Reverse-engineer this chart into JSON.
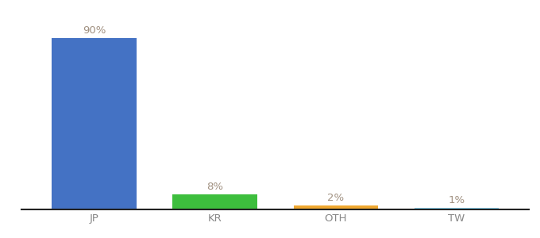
{
  "categories": [
    "JP",
    "KR",
    "OTH",
    "TW"
  ],
  "values": [
    90,
    8,
    2,
    1
  ],
  "bar_colors": [
    "#4472c4",
    "#3dbe3d",
    "#f0a830",
    "#87ceeb"
  ],
  "ylim": [
    0,
    100
  ],
  "bar_width": 0.7,
  "background_color": "#ffffff",
  "label_fontsize": 9.5,
  "tick_fontsize": 9.5,
  "label_color": "#a09080",
  "tick_color": "#888888",
  "spine_color": "#222222"
}
